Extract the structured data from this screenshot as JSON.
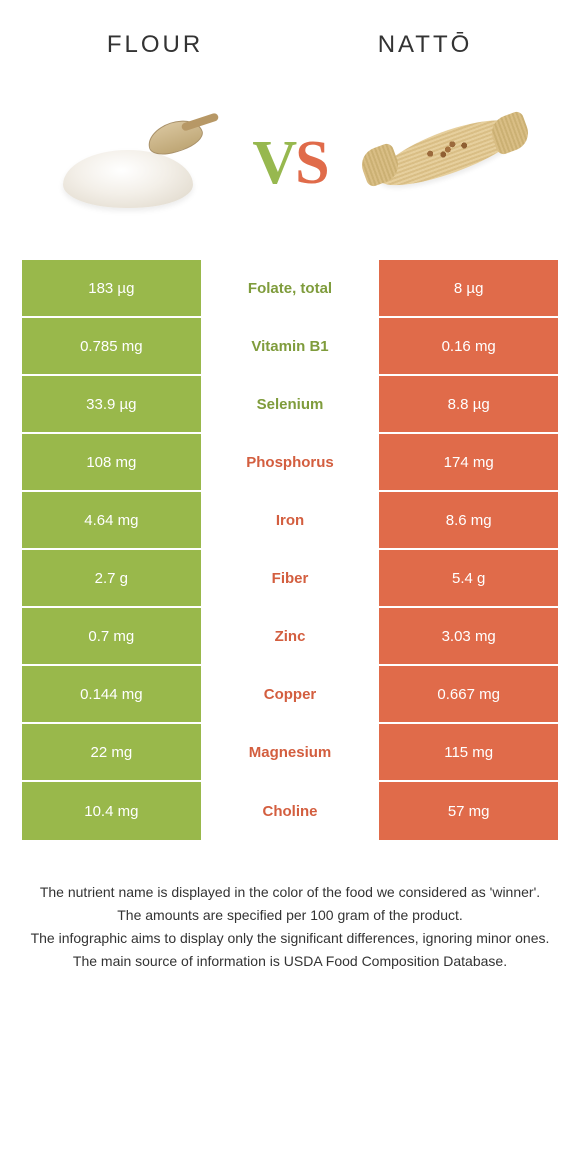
{
  "left_food": {
    "label": "FLOUR"
  },
  "right_food": {
    "label": "NATTŌ"
  },
  "vs": {
    "v": "V",
    "s": "S"
  },
  "colors": {
    "left_bg": "#99b84b",
    "right_bg": "#e06b4a",
    "left_text": "#7f9c3c",
    "right_text": "#d35e3f",
    "page_bg": "#ffffff"
  },
  "rows": [
    {
      "nutrient": "Folate, total",
      "left": "183 µg",
      "right": "8 µg",
      "winner": "left"
    },
    {
      "nutrient": "Vitamin B1",
      "left": "0.785 mg",
      "right": "0.16 mg",
      "winner": "left"
    },
    {
      "nutrient": "Selenium",
      "left": "33.9 µg",
      "right": "8.8 µg",
      "winner": "left"
    },
    {
      "nutrient": "Phosphorus",
      "left": "108 mg",
      "right": "174 mg",
      "winner": "right"
    },
    {
      "nutrient": "Iron",
      "left": "4.64 mg",
      "right": "8.6 mg",
      "winner": "right"
    },
    {
      "nutrient": "Fiber",
      "left": "2.7 g",
      "right": "5.4 g",
      "winner": "right"
    },
    {
      "nutrient": "Zinc",
      "left": "0.7 mg",
      "right": "3.03 mg",
      "winner": "right"
    },
    {
      "nutrient": "Copper",
      "left": "0.144 mg",
      "right": "0.667 mg",
      "winner": "right"
    },
    {
      "nutrient": "Magnesium",
      "left": "22 mg",
      "right": "115 mg",
      "winner": "right"
    },
    {
      "nutrient": "Choline",
      "left": "10.4 mg",
      "right": "57 mg",
      "winner": "right"
    }
  ],
  "footer": {
    "l1": "The nutrient name is displayed in the color of the food we considered as 'winner'.",
    "l2": "The amounts are specified per 100 gram of the product.",
    "l3": "The infographic aims to display only the significant differences, ignoring minor ones.",
    "l4": "The main source of information is USDA Food Composition Database."
  }
}
